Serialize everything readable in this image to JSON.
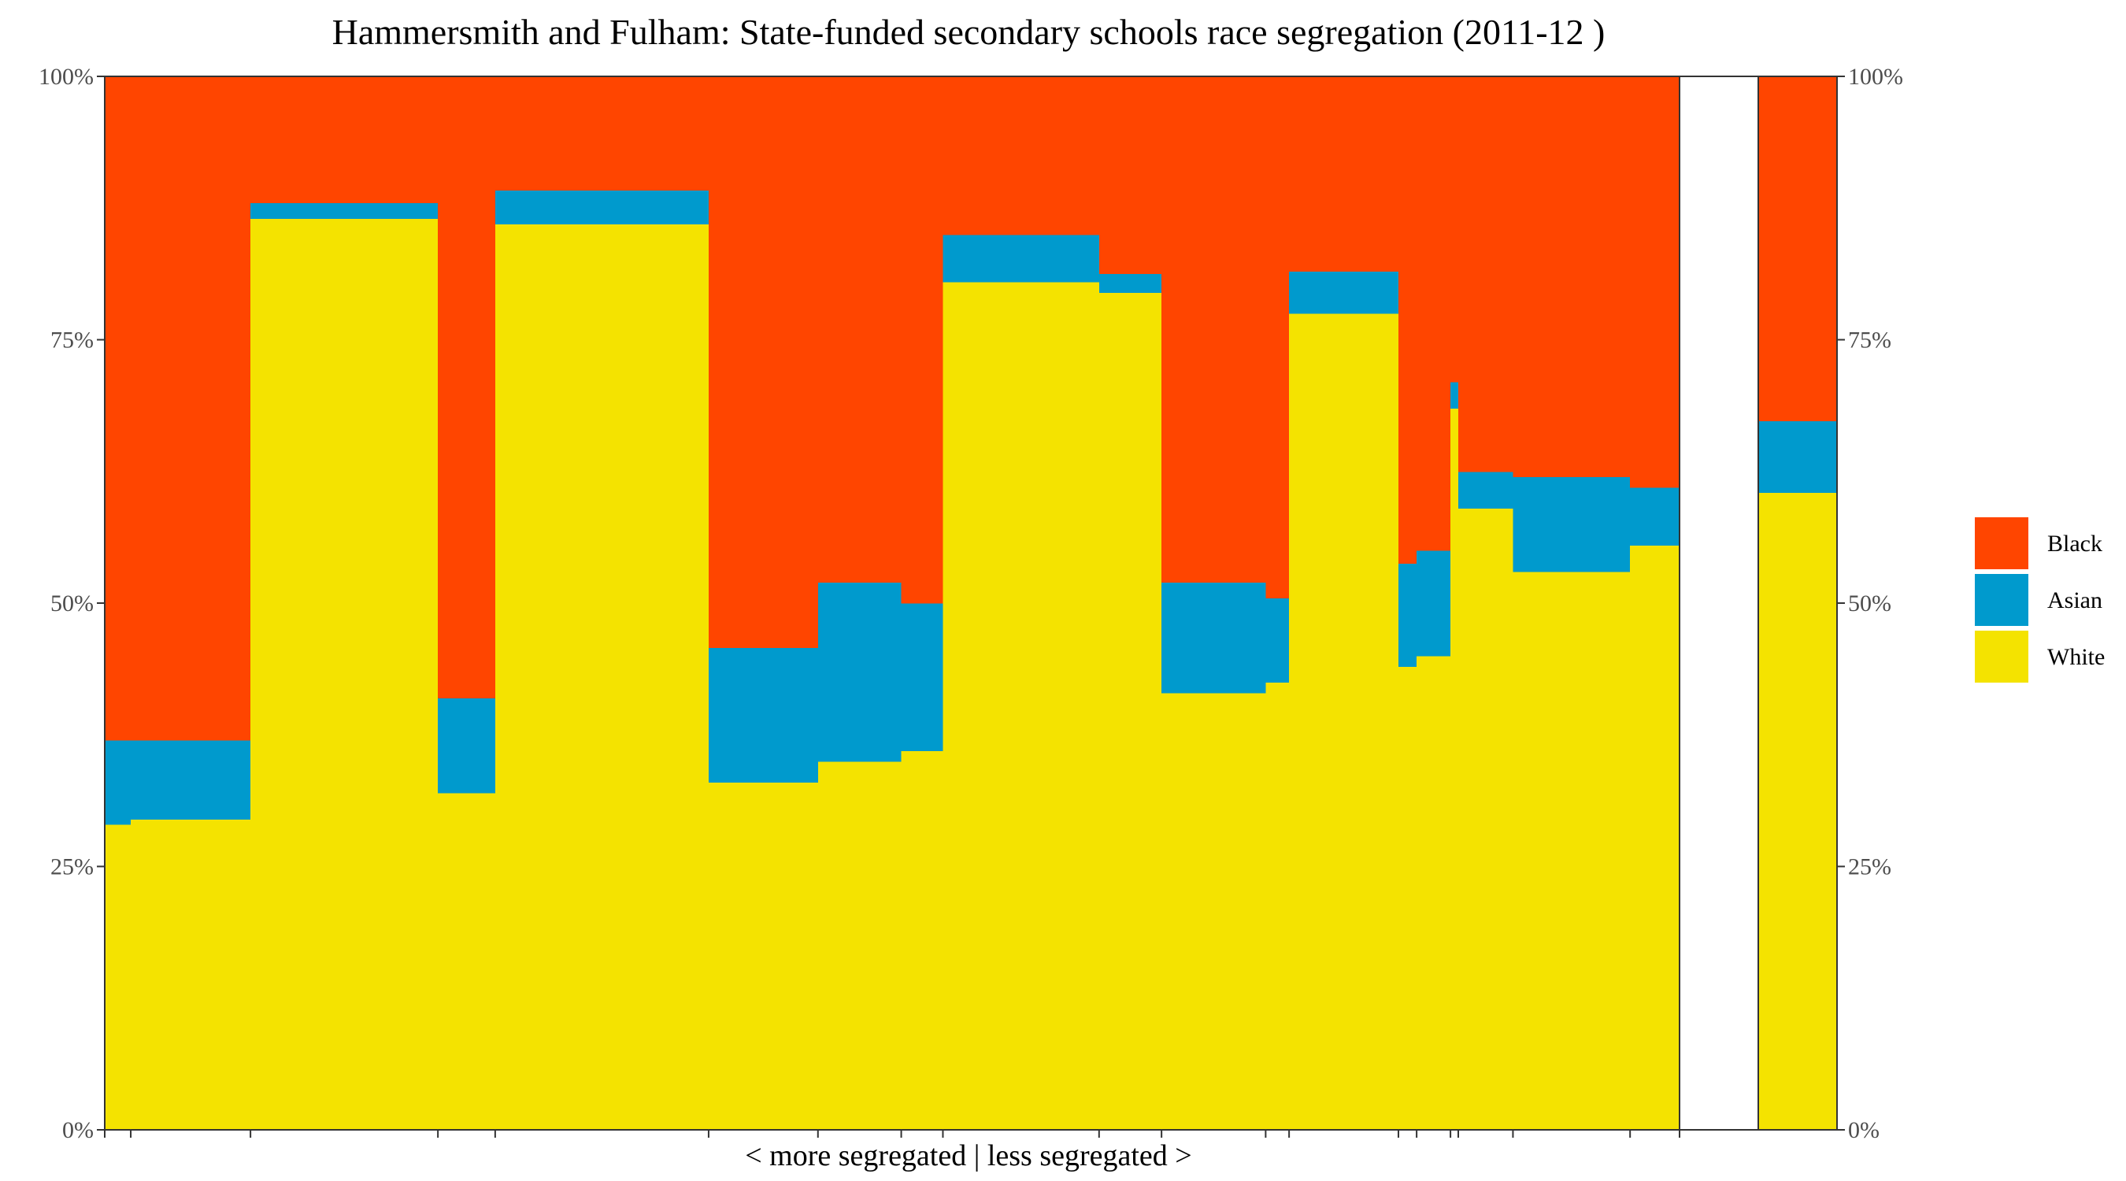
{
  "chart_data": {
    "type": "bar",
    "title": "Hammersmith and Fulham: State-funded secondary schools race segregation (2011-12 )",
    "xlabel": "< more segregated | less segregated >",
    "ylabel": "",
    "ylim": [
      0,
      100
    ],
    "y_ticks": [
      "0%",
      "25%",
      "50%",
      "75%",
      "100%"
    ],
    "grid": false,
    "legend_position": "right",
    "stack_order": [
      "White",
      "Asian",
      "Black"
    ],
    "series": [
      {
        "name": "Black",
        "color": "#FF4500"
      },
      {
        "name": "Asian",
        "color": "#009ACD"
      },
      {
        "name": "White",
        "color": "#F4E300"
      }
    ],
    "schools": [
      {
        "width": 1.0,
        "white": 29.0,
        "asian": 8.0,
        "black": 63.0
      },
      {
        "width": 4.6,
        "white": 29.5,
        "asian": 7.5,
        "black": 63.0
      },
      {
        "width": 7.2,
        "white": 86.5,
        "asian": 1.5,
        "black": 12.0
      },
      {
        "width": 2.2,
        "white": 32.0,
        "asian": 9.0,
        "black": 59.0
      },
      {
        "width": 8.2,
        "white": 86.0,
        "asian": 3.2,
        "black": 10.8
      },
      {
        "width": 4.2,
        "white": 33.0,
        "asian": 12.8,
        "black": 54.2
      },
      {
        "width": 3.2,
        "white": 35.0,
        "asian": 17.0,
        "black": 48.0
      },
      {
        "width": 1.6,
        "white": 36.0,
        "asian": 14.0,
        "black": 50.0
      },
      {
        "width": 6.0,
        "white": 80.5,
        "asian": 4.5,
        "black": 15.0
      },
      {
        "width": 2.4,
        "white": 79.5,
        "asian": 1.8,
        "black": 18.7
      },
      {
        "width": 4.0,
        "white": 41.5,
        "asian": 10.5,
        "black": 48.0
      },
      {
        "width": 0.9,
        "white": 42.5,
        "asian": 8.0,
        "black": 49.5
      },
      {
        "width": 4.2,
        "white": 77.5,
        "asian": 4.0,
        "black": 18.5
      },
      {
        "width": 0.7,
        "white": 44.0,
        "asian": 9.8,
        "black": 46.2
      },
      {
        "width": 1.3,
        "white": 45.0,
        "asian": 10.0,
        "black": 45.0
      },
      {
        "width": 0.3,
        "white": 68.5,
        "asian": 2.5,
        "black": 29.0
      },
      {
        "width": 2.1,
        "white": 59.0,
        "asian": 3.5,
        "black": 37.5
      },
      {
        "width": 4.5,
        "white": 53.0,
        "asian": 9.0,
        "black": 38.0
      },
      {
        "width": 1.9,
        "white": 55.5,
        "asian": 5.5,
        "black": 39.0
      }
    ],
    "overall": {
      "white": 60.5,
      "asian": 6.8,
      "black": 32.7
    }
  }
}
